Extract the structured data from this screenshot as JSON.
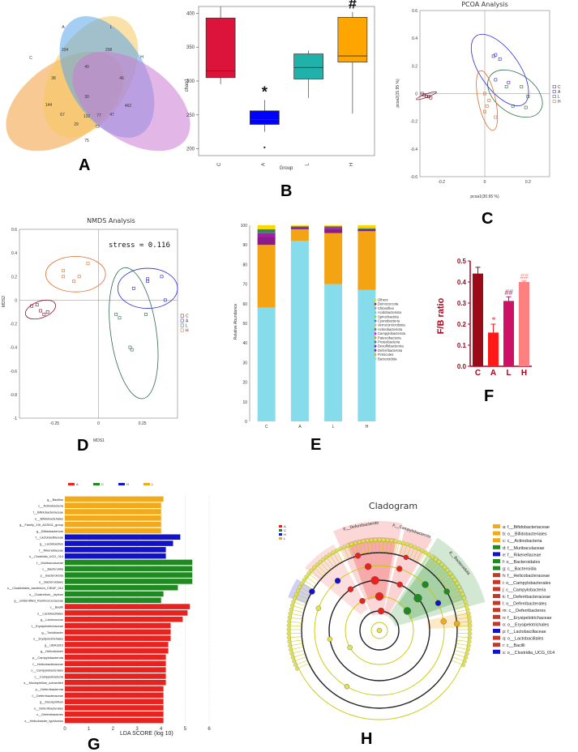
{
  "panels": {
    "a": "A",
    "b": "B",
    "c": "C",
    "d": "D",
    "e": "E",
    "f": "F",
    "g": "G",
    "h": "H"
  },
  "chart_data": [
    {
      "id": "A",
      "type": "venn",
      "sets": [
        "C",
        "A",
        "L",
        "H"
      ],
      "colors": [
        "#f39c3a",
        "#f5c85e",
        "#5aa5ea",
        "#cc7ad6"
      ],
      "region_values": [
        "77",
        "204",
        "208",
        "462",
        "144",
        "40",
        "38",
        "46",
        "30",
        "132",
        "47",
        "67",
        "29",
        "75",
        "73"
      ]
    },
    {
      "id": "B",
      "type": "box",
      "ylabel": "chao1",
      "xlabel": "Group",
      "categories": [
        "C",
        "A",
        "L",
        "H"
      ],
      "ylim": [
        190,
        410
      ],
      "yticks": [
        200,
        250,
        300,
        350,
        400
      ],
      "boxes": [
        {
          "name": "C",
          "min": 295,
          "q1": 305,
          "median": 315,
          "q3": 393,
          "max": 410,
          "color": "#dc143c"
        },
        {
          "name": "A",
          "min": 225,
          "q1": 236,
          "median": 243,
          "q3": 256,
          "max": 272,
          "outlier": 202,
          "color": "#0000ff"
        },
        {
          "name": "L",
          "min": 275,
          "q1": 303,
          "median": 320,
          "q3": 340,
          "max": 345,
          "color": "#20b2aa"
        },
        {
          "name": "H",
          "min": 252,
          "q1": 328,
          "median": 337,
          "q3": 394,
          "max": 402,
          "color": "#ffa500"
        }
      ],
      "annotations": {
        "A": "*",
        "H": "#"
      }
    },
    {
      "id": "C",
      "type": "scatter",
      "title": "PCOA Analysis",
      "xlabel": "pcoa1(30.65 %)",
      "ylabel": "pcoa2(15.95 %)",
      "xlim": [
        -0.3,
        0.3
      ],
      "ylim": [
        -0.6,
        0.6
      ],
      "xticks": [
        "-0.2",
        "0",
        "0.2"
      ],
      "yticks": [
        "0.6",
        "0.4",
        "0.2",
        "0",
        "-0.2",
        "-0.4",
        "-0.6"
      ],
      "legend": [
        "C",
        "A",
        "L",
        "H"
      ],
      "series": [
        {
          "name": "C",
          "color": "#7b1b2e",
          "points": [
            [
              -0.29,
              0.0
            ],
            [
              -0.28,
              -0.01
            ],
            [
              -0.27,
              -0.02
            ],
            [
              -0.26,
              -0.02
            ],
            [
              -0.25,
              -0.03
            ]
          ]
        },
        {
          "name": "A",
          "color": "#2a2ad6",
          "points": [
            [
              0.04,
              0.27
            ],
            [
              0.05,
              0.28
            ],
            [
              0.07,
              0.25
            ],
            [
              0.05,
              0.1
            ],
            [
              0.11,
              0.08
            ]
          ]
        },
        {
          "name": "L",
          "color": "#2f6b4c",
          "points": [
            [
              0.1,
              0.05
            ],
            [
              0.17,
              0.05
            ],
            [
              0.2,
              -0.02
            ],
            [
              0.19,
              -0.1
            ],
            [
              0.13,
              -0.09
            ]
          ]
        },
        {
          "name": "H",
          "color": "#e06b2a",
          "points": [
            [
              0.0,
              0.0
            ],
            [
              0.02,
              -0.05
            ],
            [
              0.0,
              -0.13
            ],
            [
              0.05,
              -0.17
            ],
            [
              0.01,
              -0.09
            ]
          ]
        }
      ]
    },
    {
      "id": "D",
      "type": "scatter",
      "title": "NMDS Analysis",
      "stress": "stress = 0.116",
      "xlabel": "MDS1",
      "ylabel": "MDS2",
      "xlim": [
        -0.45,
        0.45
      ],
      "ylim": [
        -1,
        0.6
      ],
      "xticks": [
        "-0.25",
        "0",
        "0.25"
      ],
      "yticks": [
        "0.6",
        "0.4",
        "0.2",
        "0",
        "-0.2",
        "-0.4",
        "-0.6",
        "-0.8",
        "-1"
      ],
      "legend": [
        "C",
        "A",
        "L",
        "H"
      ],
      "series": [
        {
          "name": "C",
          "color": "#7b1b2e",
          "points": [
            [
              -0.38,
              -0.05
            ],
            [
              -0.35,
              -0.04
            ],
            [
              -0.33,
              -0.09
            ],
            [
              -0.31,
              -0.12
            ],
            [
              -0.29,
              -0.1
            ]
          ]
        },
        {
          "name": "A",
          "color": "#2a2ad6",
          "points": [
            [
              0.2,
              0.1
            ],
            [
              0.28,
              0.18
            ],
            [
              0.28,
              0.16
            ],
            [
              0.36,
              0.2
            ],
            [
              0.38,
              0.0
            ]
          ]
        },
        {
          "name": "L",
          "color": "#2f6b4c",
          "points": [
            [
              0.1,
              -0.12
            ],
            [
              0.12,
              -0.15
            ],
            [
              0.18,
              -0.4
            ],
            [
              0.19,
              -0.42
            ],
            [
              0.27,
              -0.12
            ]
          ]
        },
        {
          "name": "H",
          "color": "#e06b2a",
          "points": [
            [
              -0.2,
              0.25
            ],
            [
              -0.2,
              0.2
            ],
            [
              -0.14,
              0.16
            ],
            [
              -0.11,
              0.2
            ],
            [
              -0.06,
              0.31
            ]
          ]
        }
      ]
    },
    {
      "id": "E",
      "type": "bar",
      "stacked": true,
      "ylabel": "Relative Abundance",
      "categories": [
        "C",
        "A",
        "L",
        "H"
      ],
      "ylim": [
        0,
        100
      ],
      "yticks": [
        0,
        10,
        20,
        30,
        40,
        50,
        60,
        70,
        80,
        90,
        100
      ],
      "series": [
        {
          "name": "Bacteroidota",
          "color": "#87dceb",
          "values": [
            58,
            92,
            70,
            67
          ]
        },
        {
          "name": "Firmicutes",
          "color": "#f4a413",
          "values": [
            32,
            6,
            26,
            30
          ]
        },
        {
          "name": "Deferribacterota",
          "color": "#8b1a8b",
          "values": [
            4,
            1,
            2,
            1
          ]
        },
        {
          "name": "Desulfobacterota",
          "color": "#a020a0",
          "values": [
            2,
            0,
            1,
            0
          ]
        },
        {
          "name": "Proteobacteria",
          "color": "#2e8b57",
          "values": [
            2,
            0.5,
            0.5,
            0.5
          ]
        },
        {
          "name": "Others",
          "color": "#ffd700",
          "values": [
            2,
            0.5,
            0.5,
            1.5
          ]
        }
      ],
      "legend": [
        "Others",
        "Deinococcota",
        "Chloroflexi",
        "Acidobacteriota",
        "Spirochaetota",
        "Cyanobacteria",
        "Verrucomicrobiota",
        "Actinobacteriota",
        "Campylobacterota",
        "Patescibacteria",
        "Proteobacteria",
        "Desulfobacterota",
        "Deferribacterota",
        "Firmicutes",
        "Bacteroidota"
      ],
      "legend_colors": [
        "#ffd700",
        "#8b4513",
        "#ff69b4",
        "#40e0d0",
        "#9acd32",
        "#4682b4",
        "#d2b48c",
        "#808000",
        "#ff00ff",
        "#ff8c00",
        "#2e8b57",
        "#a020a0",
        "#8b1a8b",
        "#f4a413",
        "#87dceb"
      ]
    },
    {
      "id": "F",
      "type": "bar",
      "ylabel": "F/B ratio",
      "categories": [
        "C",
        "A",
        "L",
        "H"
      ],
      "values": [
        0.44,
        0.16,
        0.31,
        0.4
      ],
      "errors": [
        0.03,
        0.04,
        0.02,
        0.005
      ],
      "colors": [
        "#9b0a17",
        "#ff1a1a",
        "#cc1166",
        "#ff8080"
      ],
      "ylim": [
        0,
        0.5
      ],
      "yticks": [
        "0.0",
        "0.1",
        "0.2",
        "0.3",
        "0.4",
        "0.5"
      ],
      "annotations": [
        "",
        "*",
        "##",
        "##"
      ]
    },
    {
      "id": "G",
      "type": "bar",
      "orientation": "horizontal",
      "xlabel": "LDA SCORE (log 10)",
      "xlim": [
        0,
        6
      ],
      "xticks": [
        "0",
        "1",
        "2",
        "3",
        "4",
        "5",
        "6"
      ],
      "legend": [
        {
          "name": "A",
          "color": "#e8231f"
        },
        {
          "name": "C",
          "color": "#1f8a1f"
        },
        {
          "name": "H",
          "color": "#1212c8"
        },
        {
          "name": "L",
          "color": "#f2a91a"
        }
      ],
      "bars": [
        {
          "label": "g__Bacillus",
          "value": 4.1,
          "group": "L"
        },
        {
          "label": "c__Actinobacteria",
          "value": 4.0,
          "group": "L"
        },
        {
          "label": "f__Bifidobacteriaceae",
          "value": 4.0,
          "group": "L"
        },
        {
          "label": "o__Bifidobacteriales",
          "value": 4.0,
          "group": "L"
        },
        {
          "label": "g__Family_XIII_AD3011_group",
          "value": 4.0,
          "group": "L"
        },
        {
          "label": "g__Bifidobacterium",
          "value": 4.0,
          "group": "L"
        },
        {
          "label": "f__Lactobacillaceae",
          "value": 4.8,
          "group": "H"
        },
        {
          "label": "g__Lactobacillus",
          "value": 4.5,
          "group": "H"
        },
        {
          "label": "f__Rikenellaceae",
          "value": 4.2,
          "group": "H"
        },
        {
          "label": "o__Clostridia_UCG_014",
          "value": 4.2,
          "group": "H"
        },
        {
          "label": "f__Muribaculaceae",
          "value": 5.3,
          "group": "C"
        },
        {
          "label": "c__Bacteroidia",
          "value": 5.3,
          "group": "C"
        },
        {
          "label": "p__Bacteroidota",
          "value": 5.3,
          "group": "C"
        },
        {
          "label": "o__Bacteroidales",
          "value": 5.3,
          "group": "C"
        },
        {
          "label": "s__Clostridiales_bacterium_CIEAF_012",
          "value": 4.7,
          "group": "C"
        },
        {
          "label": "s__Clostridium__leptum",
          "value": 4.1,
          "group": "C"
        },
        {
          "label": "g__unidentified_Ruminococcaceae",
          "value": 4.0,
          "group": "C"
        },
        {
          "label": "c__Bacilli",
          "value": 5.2,
          "group": "A"
        },
        {
          "label": "o__Lactobacillales",
          "value": 5.1,
          "group": "A"
        },
        {
          "label": "g__Lactococcus",
          "value": 4.9,
          "group": "A"
        },
        {
          "label": "f__Erysipelotrichaceae",
          "value": 4.4,
          "group": "A"
        },
        {
          "label": "g__Turicibacter",
          "value": 4.4,
          "group": "A"
        },
        {
          "label": "o__Erysipelotrichales",
          "value": 4.4,
          "group": "A"
        },
        {
          "label": "g__UBA1819",
          "value": 4.3,
          "group": "A"
        },
        {
          "label": "g__Helicobacter",
          "value": 4.3,
          "group": "A"
        },
        {
          "label": "p__Campylobacterota",
          "value": 4.2,
          "group": "A"
        },
        {
          "label": "f__Helicobacteraceae",
          "value": 4.2,
          "group": "A"
        },
        {
          "label": "o__Campylobacterales",
          "value": 4.2,
          "group": "A"
        },
        {
          "label": "c__Campylobacteria",
          "value": 4.2,
          "group": "A"
        },
        {
          "label": "s__Mucispirillum_schaedleri",
          "value": 4.2,
          "group": "A"
        },
        {
          "label": "p__Deferribacterota",
          "value": 4.1,
          "group": "A"
        },
        {
          "label": "f__Deferribacteraceae",
          "value": 4.1,
          "group": "A"
        },
        {
          "label": "g__Mucispirillum",
          "value": 4.1,
          "group": "A"
        },
        {
          "label": "o__Deferribacterales",
          "value": 4.1,
          "group": "A"
        },
        {
          "label": "c__Deferribacteres",
          "value": 4.1,
          "group": "A"
        },
        {
          "label": "s__Helicobacter_typhlonius",
          "value": 4.1,
          "group": "A"
        }
      ]
    },
    {
      "id": "H",
      "type": "cladogram",
      "title": "Cladogram",
      "group_legend": [
        {
          "name": "A",
          "color": "#e8231f"
        },
        {
          "name": "C",
          "color": "#1f8a1f"
        },
        {
          "name": "H",
          "color": "#1212c8"
        },
        {
          "name": "L",
          "color": "#f2a91a"
        }
      ],
      "sector_labels": [
        "p__Deferribacterota",
        "p__Campylobacterota",
        "p__Bacteroidota"
      ],
      "legend": [
        {
          "text": "a: f__Bifidobacteriaceae",
          "color": "#f2a91a"
        },
        {
          "text": "b: o__Bifidobacteriales",
          "color": "#f2a91a"
        },
        {
          "text": "c: c__Actinobacteria",
          "color": "#f2a91a"
        },
        {
          "text": "d: f__Muribaculaceae",
          "color": "#1f8a1f"
        },
        {
          "text": "e: f__Rikenellaceae",
          "color": "#1212c8"
        },
        {
          "text": "f: o__Bacteroidales",
          "color": "#1f8a1f"
        },
        {
          "text": "g: c__Bacteroidia",
          "color": "#1f8a1f"
        },
        {
          "text": "h: f__Helicobacteraceae",
          "color": "#c0392b"
        },
        {
          "text": "i: o__Campylobacterales",
          "color": "#c0392b"
        },
        {
          "text": "j: c__Campylobacteria",
          "color": "#c0392b"
        },
        {
          "text": "k: f__Deferribacteraceae",
          "color": "#c0392b"
        },
        {
          "text": "l: o__Deferribacterales",
          "color": "#c0392b"
        },
        {
          "text": "m: c__Deferribacteres",
          "color": "#c0392b"
        },
        {
          "text": "n: f__Erysipelotrichaceae",
          "color": "#c0392b"
        },
        {
          "text": "o: o__Erysipelotrichales",
          "color": "#c0392b"
        },
        {
          "text": "p: f__Lactobacillaceae",
          "color": "#1212c8"
        },
        {
          "text": "q: o__Lactobacillales",
          "color": "#c0392b"
        },
        {
          "text": "r: c__Bacilli",
          "color": "#c0392b"
        },
        {
          "text": "s: o__Clostridia_UCG_014",
          "color": "#1212c8"
        }
      ]
    }
  ]
}
